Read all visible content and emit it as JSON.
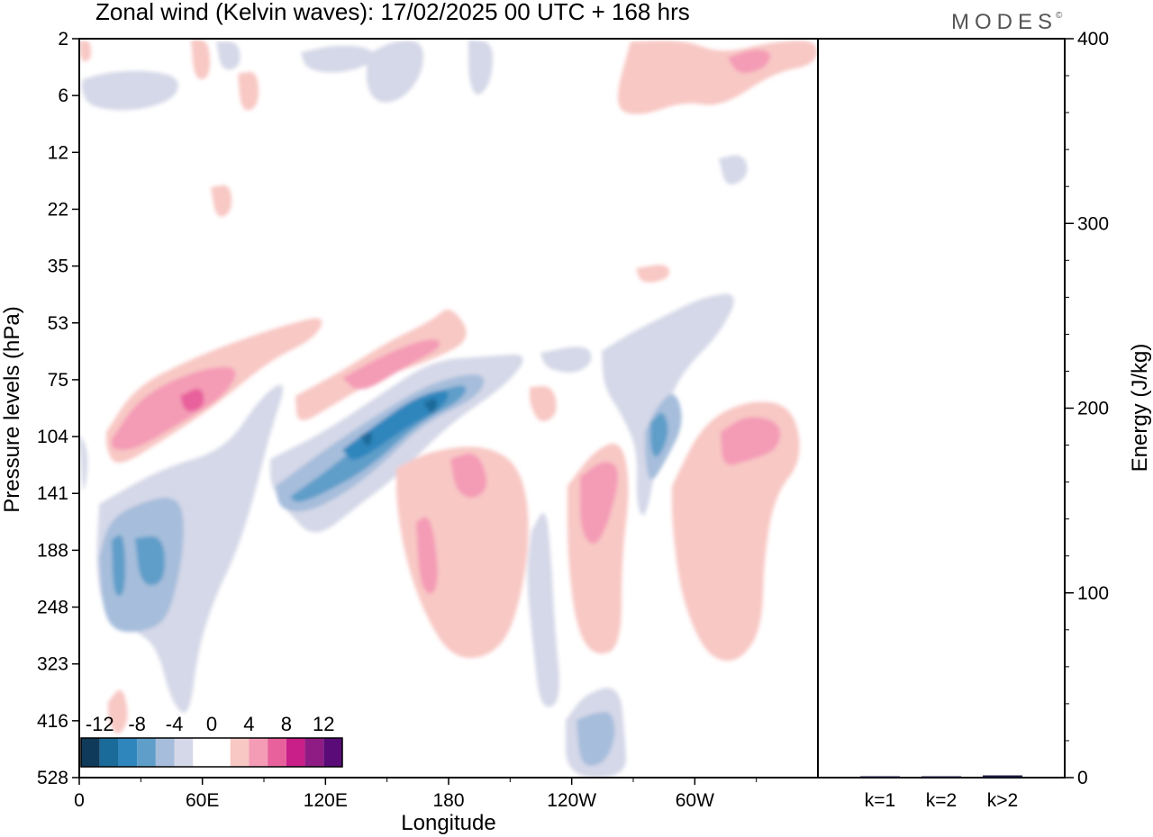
{
  "title": "Zonal wind (Kelvin waves):  17/02/2025  00 UTC  + 168 hrs",
  "brand": "MODES",
  "brand_mark": "©",
  "colors": {
    "neg_ramp": [
      "#0f3a5a",
      "#1a6a9a",
      "#2f86bd",
      "#5e9ec9",
      "#a6bddb",
      "#d5d8e8"
    ],
    "pos_ramp": [
      "#f8c8c4",
      "#f49bb6",
      "#e8619c",
      "#c81f88",
      "#8e1c84",
      "#5a0b78"
    ]
  },
  "chart_data": [
    {
      "type": "heatmap",
      "title": "Zonal wind (Kelvin waves):  17/02/2025  00 UTC  + 168 hrs",
      "xlabel": "Longitude",
      "ylabel": "Pressure levels (hPa)",
      "x_ticks": [
        "0",
        "60E",
        "120E",
        "180",
        "120W",
        "60W"
      ],
      "x_range_deg": [
        0,
        360
      ],
      "y_ticks": [
        "2",
        "6",
        "12",
        "22",
        "35",
        "53",
        "75",
        "104",
        "141",
        "188",
        "248",
        "323",
        "416",
        "528"
      ],
      "y_scale": "log-like pressure, top=2 hPa, bottom=528 hPa",
      "colorbar": {
        "labels": [
          "-12",
          "-8",
          "-4",
          "0",
          "4",
          "8",
          "12"
        ],
        "bins": [
          -14,
          -12,
          -10,
          -8,
          -6,
          -4,
          -2,
          2,
          4,
          6,
          8,
          10,
          12,
          14
        ]
      },
      "features": [
        {
          "name": "easterly core near 20E",
          "sign": "negative",
          "lon_range": [
            10,
            50
          ],
          "p_range_hPa": [
            140,
            330
          ],
          "peak": -8
        },
        {
          "name": "easterly band 120E-190E",
          "sign": "negative",
          "lon_range": [
            95,
            210
          ],
          "p_range_hPa": [
            75,
            160
          ],
          "peak": -12
        },
        {
          "name": "westerly band 15E-75E",
          "sign": "positive",
          "lon_range": [
            15,
            120
          ],
          "p_range_hPa": [
            53,
            110
          ],
          "peak": 10
        },
        {
          "name": "westerly band 110E-190E",
          "sign": "positive",
          "lon_range": [
            105,
            195
          ],
          "p_range_hPa": [
            50,
            100
          ],
          "peak": 8
        },
        {
          "name": "westerly 170E-220E",
          "sign": "positive",
          "lon_range": [
            155,
            220
          ],
          "p_range_hPa": [
            104,
            330
          ],
          "peak": 6
        },
        {
          "name": "westerly near 130W",
          "sign": "positive",
          "lon_range": [
            240,
            265
          ],
          "p_range_hPa": [
            104,
            330
          ],
          "peak": 6
        },
        {
          "name": "easterly near 80W",
          "sign": "negative",
          "lon_range": [
            270,
            300
          ],
          "p_range_hPa": [
            70,
            180
          ],
          "peak": -10
        },
        {
          "name": "westerly near 40W",
          "sign": "positive",
          "lon_range": [
            290,
            355
          ],
          "p_range_hPa": [
            90,
            330
          ],
          "peak": 6
        }
      ]
    },
    {
      "type": "bar",
      "categories": [
        "k=1",
        "k=2",
        "k>2"
      ],
      "values": [
        0.6,
        0.4,
        1.2
      ],
      "ylabel": "Energy (J/kg)",
      "ylim": [
        0,
        400
      ],
      "y_ticks": [
        "0",
        "100",
        "200",
        "300",
        "400"
      ]
    }
  ]
}
